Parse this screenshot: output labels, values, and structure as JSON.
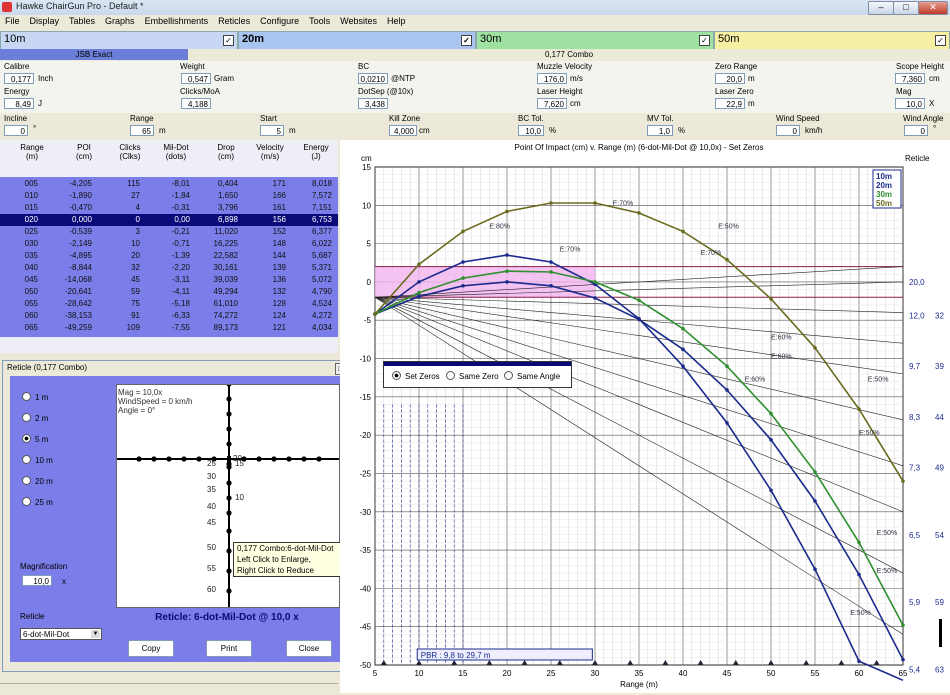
{
  "window": {
    "title": "Hawke ChairGun Pro - Default *",
    "min": "–",
    "max": "□",
    "close": "✕"
  },
  "menu": [
    "File",
    "Display",
    "Tables",
    "Graphs",
    "Embellishments",
    "Reticles",
    "Configure",
    "Tools",
    "Websites",
    "Help"
  ],
  "range_tabs": [
    {
      "label": "10m",
      "bg": "#c8d8f4",
      "checked": true
    },
    {
      "label": "20m",
      "bg": "#a9c4ee",
      "checked": true
    },
    {
      "label": "30m",
      "bg": "#9fe1a0",
      "checked": true
    },
    {
      "label": "50m",
      "bg": "#f7efa4",
      "checked": true
    }
  ],
  "bullets": {
    "b1": "JSB Exact",
    "b2": "0,177 Combo"
  },
  "params": {
    "calibre": {
      "label": "Calibre",
      "value": "0,177",
      "unit": "Inch"
    },
    "energy": {
      "label": "Energy",
      "value": "8,49",
      "unit": "J"
    },
    "weight": {
      "label": "Weight",
      "value": "0,547",
      "unit": "Gram"
    },
    "clicks_moa": {
      "label": "Clicks/MoA",
      "value": "4,188"
    },
    "bc": {
      "label": "BC",
      "value": "0,0210",
      "unit": "@NTP"
    },
    "dotsep": {
      "label": "DotSep (@10x)",
      "value": "3,438"
    },
    "muzzle": {
      "label": "Muzzle Velocity",
      "value": "176,0",
      "unit": "m/s"
    },
    "laser_h": {
      "label": "Laser Height",
      "value": "7,620",
      "unit": "cm"
    },
    "zero_range": {
      "label": "Zero Range",
      "value": "20,0",
      "unit": "m"
    },
    "laser_zero": {
      "label": "Laser Zero",
      "value": "22,9",
      "unit": "m"
    },
    "scope_h": {
      "label": "Scope Height",
      "value": "7,360",
      "unit": "cm"
    },
    "mag": {
      "label": "Mag",
      "value": "10,0",
      "unit": "X"
    },
    "incline": {
      "label": "Incline",
      "value": "0",
      "unit": "°"
    },
    "range": {
      "label": "Range",
      "value": "65",
      "unit": "m"
    },
    "start": {
      "label": "Start",
      "value": "5",
      "unit": "m"
    },
    "kill_zone": {
      "label": "Kill Zone",
      "value": "4,000",
      "unit": "cm"
    },
    "bc_tol": {
      "label": "BC Tol.",
      "value": "10,0",
      "unit": "%"
    },
    "mv_tol": {
      "label": "MV Tol.",
      "value": "1,0",
      "unit": "%"
    },
    "wind_speed": {
      "label": "Wind Speed",
      "value": "0",
      "unit": "km/h"
    },
    "wind_angle": {
      "label": "Wind Angle",
      "value": "0",
      "unit": "°"
    }
  },
  "table": {
    "headers": [
      [
        "Range",
        "(m)"
      ],
      [
        "POI",
        "(cm)"
      ],
      [
        "Clicks",
        "(Clks)"
      ],
      [
        "Mil-Dot",
        "(dots)"
      ],
      [
        "Drop",
        "(cm)"
      ],
      [
        "Velocity",
        "(m/s)"
      ],
      [
        "Energy",
        "(J)"
      ]
    ],
    "rows": [
      [
        "005",
        "-4,205",
        "115",
        "-8,01",
        "0,404",
        "171",
        "8,018"
      ],
      [
        "010",
        "-1,890",
        "27",
        "-1,84",
        "1,650",
        "166",
        "7,572"
      ],
      [
        "015",
        "-0,470",
        "4",
        "-0,31",
        "3,796",
        "161",
        "7,151"
      ],
      [
        "020",
        "0,000",
        "0",
        "0,00",
        "6,898",
        "156",
        "6,753"
      ],
      [
        "025",
        "-0,539",
        "3",
        "-0,21",
        "11,020",
        "152",
        "6,377"
      ],
      [
        "030",
        "-2,149",
        "10",
        "-0,71",
        "16,225",
        "148",
        "6,022"
      ],
      [
        "035",
        "-4,895",
        "20",
        "-1,39",
        "22,582",
        "144",
        "5,687"
      ],
      [
        "040",
        "-8,844",
        "32",
        "-2,20",
        "30,161",
        "139",
        "5,371"
      ],
      [
        "045",
        "-14,068",
        "45",
        "-3,11",
        "39,039",
        "136",
        "5,072"
      ],
      [
        "050",
        "-20,641",
        "59",
        "-4,11",
        "49,294",
        "132",
        "4,790"
      ],
      [
        "055",
        "-28,642",
        "75",
        "-5,18",
        "61,010",
        "128",
        "4,524"
      ],
      [
        "060",
        "-38,153",
        "91",
        "-6,33",
        "74,272",
        "124",
        "4,272"
      ],
      [
        "065",
        "-49,259",
        "109",
        "-7,55",
        "89,173",
        "121",
        "4,034"
      ]
    ],
    "selected_index": 3
  },
  "reticle_window": {
    "title": "Reticle (0,177 Combo)",
    "ranges": [
      "1 m",
      "2 m",
      "5 m",
      "10 m",
      "20 m",
      "25 m"
    ],
    "selected_range": 2,
    "info_mag": "Mag = 10,0x",
    "info_wind": "WindSpeed = 0 km/h",
    "info_angle": "Angle = 0°",
    "tick_labels": [
      "20",
      "25",
      "15",
      "30",
      "35",
      "10",
      "40",
      "45",
      "50",
      "55",
      "60"
    ],
    "magnification_label": "Magnification",
    "magnification": "10,0",
    "mag_unit": "x",
    "reticle_label": "Reticle",
    "reticle_value": "6-dot-Mil-Dot",
    "caption": "Reticle: 6-dot-Mil-Dot @ 10,0 x",
    "copy": "Copy",
    "print": "Print",
    "close": "Close"
  },
  "tooltip": [
    "0,177 Combo:6-dot-Mil-Dot",
    "Left Click to Enlarge,",
    "Right Click to Reduce"
  ],
  "zero_options": {
    "opts": [
      "Set Zeros",
      "Same Zero",
      "Same Angle"
    ],
    "selected": 0
  },
  "chart_data": {
    "type": "line",
    "title": "Point Of Impact (cm) v. Range (m) (6-dot-Mil-Dot @ 10,0x) - Set Zeros",
    "xlabel": "Range (m)",
    "ylabel": "cm",
    "right_label": "Reticle",
    "xlim": [
      5,
      65
    ],
    "ylim": [
      -50,
      15
    ],
    "xticks": [
      5,
      10,
      15,
      20,
      25,
      30,
      35,
      40,
      45,
      50,
      55,
      60,
      65
    ],
    "yticks": [
      15,
      10,
      5,
      0,
      -5,
      -10,
      -15,
      -20,
      -25,
      -30,
      -35,
      -40,
      -45,
      -50
    ],
    "legend": [
      "10m",
      "20m",
      "30m",
      "50m"
    ],
    "series": [
      {
        "name": "10m",
        "color": "#1b2a8c",
        "x": [
          5,
          10,
          15,
          20,
          25,
          30,
          35,
          40,
          45,
          50,
          55,
          60,
          65
        ],
        "y": [
          -4.2,
          0,
          2.6,
          3.5,
          2.6,
          -0.3,
          -4.8,
          -11,
          -18.4,
          -27.2,
          -37.5,
          -49.5,
          -62
        ]
      },
      {
        "name": "20m",
        "color": "#1b2a8c",
        "x": [
          5,
          10,
          15,
          20,
          25,
          30,
          35,
          40,
          45,
          50,
          55,
          60,
          65
        ],
        "y": [
          -4.2,
          -1.9,
          -0.5,
          0,
          -0.5,
          -2.1,
          -4.9,
          -8.8,
          -14.1,
          -20.6,
          -28.6,
          -38.2,
          -49.3
        ]
      },
      {
        "name": "30m",
        "color": "#2f8f2f",
        "x": [
          5,
          10,
          15,
          20,
          25,
          30,
          35,
          40,
          45,
          50,
          55,
          60,
          65
        ],
        "y": [
          -4.2,
          -1.4,
          0.5,
          1.4,
          1.3,
          0,
          -2.4,
          -6.1,
          -11,
          -17.2,
          -24.8,
          -34,
          -44.8
        ]
      },
      {
        "name": "50m",
        "color": "#6b6b1f",
        "x": [
          5,
          10,
          15,
          20,
          25,
          30,
          35,
          40,
          45,
          50,
          55,
          60,
          65
        ],
        "y": [
          -4.2,
          2.3,
          6.6,
          9.2,
          10.3,
          10.3,
          9,
          6.6,
          2.9,
          -2.2,
          -8.6,
          -16.6,
          -26
        ]
      }
    ],
    "kill_zone_band": [
      2,
      -2
    ],
    "annotations": [
      "E:80%",
      "E:70%",
      "E:60%",
      "E:50%"
    ],
    "pbr_label": "PBR : 9,8 to 29,7 m",
    "reticle_marks": [
      "20,0",
      "12,0",
      "9,7",
      "8,3",
      "7,3",
      "6,5",
      "5,9",
      "5,4"
    ],
    "reticle_right": [
      "32",
      "39",
      "44",
      "49",
      "54",
      "59",
      "63"
    ]
  }
}
